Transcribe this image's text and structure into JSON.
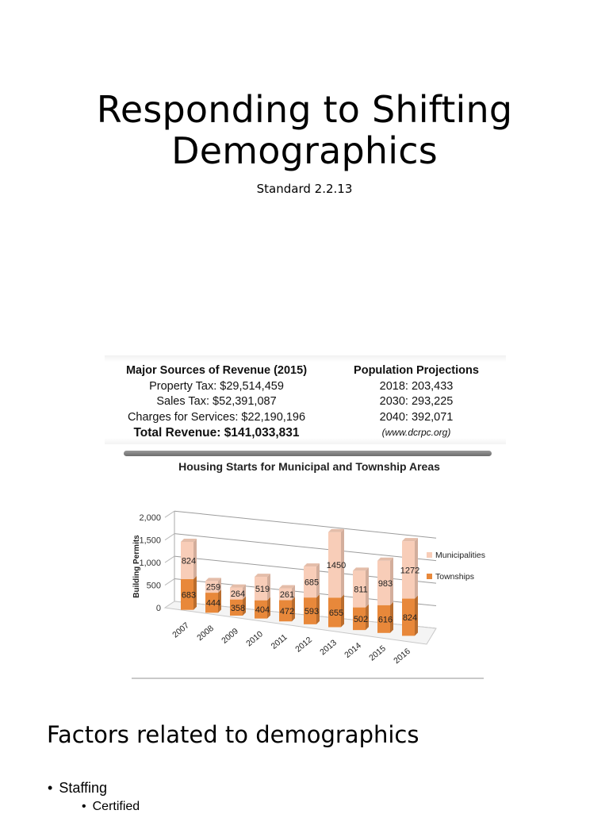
{
  "slide": {
    "title_line1": "Responding to Shifting",
    "title_line2": "Demographics",
    "subtitle": "Standard 2.2.13"
  },
  "infographic": {
    "revenue": {
      "heading": "Major Sources of Revenue (2015)",
      "lines": [
        "Property Tax: $29,514,459",
        "Sales Tax: $52,391,087",
        "Charges for Services: $22,190,196"
      ],
      "total": "Total Revenue: $141,033,831"
    },
    "population": {
      "heading": "Population Projections",
      "lines": [
        "2018: 203,433",
        "2030: 293,225",
        "2040: 392,071"
      ],
      "source": "(www.dcrpc.org)"
    },
    "chart_title": "Housing Starts for Municipal and Township Areas"
  },
  "chart_data": {
    "type": "bar",
    "stacked": true,
    "title": "Housing Starts for Municipal and Township Areas",
    "xlabel": "",
    "ylabel": "Building Permits",
    "ylim": [
      0,
      2000
    ],
    "yticks": [
      "0",
      "500",
      "1,000",
      "1,500",
      "2,000"
    ],
    "categories": [
      "2007",
      "2008",
      "2009",
      "2010",
      "2011",
      "2012",
      "2013",
      "2014",
      "2015",
      "2016"
    ],
    "series": [
      {
        "name": "Townships",
        "color": "#e8883a",
        "values": [
          683,
          444,
          358,
          404,
          472,
          593,
          655,
          502,
          616,
          824
        ]
      },
      {
        "name": "Municipalities",
        "color": "#f8cdb8",
        "values": [
          824,
          259,
          264,
          519,
          261,
          685,
          1450,
          811,
          983,
          1272
        ]
      }
    ],
    "legend": [
      "Municipalities",
      "Townships"
    ],
    "legend_position": "right",
    "grid": true
  },
  "section": {
    "heading": "Factors related to demographics",
    "bullets": [
      {
        "label": "Staffing",
        "bullet": "•"
      },
      {
        "label": "Certified",
        "bullet": "•"
      }
    ]
  }
}
